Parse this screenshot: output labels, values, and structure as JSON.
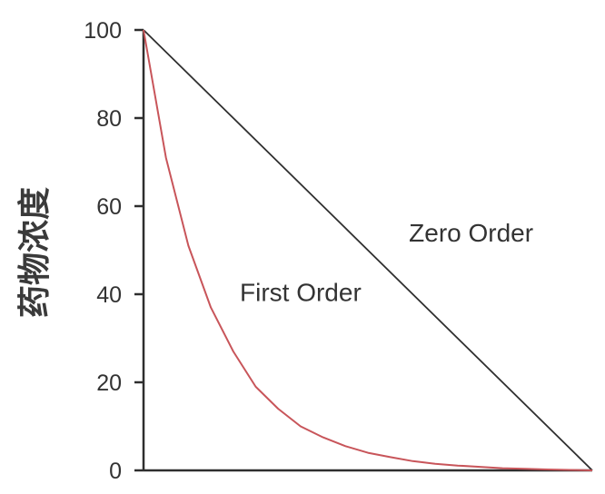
{
  "chart_data": {
    "type": "line",
    "title": "",
    "xlabel": "",
    "ylabel": "药物浓度",
    "ylim": [
      0,
      100
    ],
    "xlim": [
      0,
      10
    ],
    "y_ticks": [
      "0",
      "20",
      "40",
      "60",
      "80",
      "100"
    ],
    "x_ticks": [],
    "grid": false,
    "legend": "none",
    "series": [
      {
        "color": "#2f2f2f",
        "x": [
          0,
          10
        ],
        "y": [
          100,
          0
        ]
      },
      {
        "color": "#c8555a",
        "x": [
          0,
          0.5,
          1,
          1.5,
          2,
          2.5,
          3,
          3.5,
          4,
          4.5,
          5,
          5.5,
          6,
          6.5,
          7,
          7.5,
          8,
          8.5,
          9,
          9.5,
          10
        ],
        "y": [
          100,
          71,
          51,
          37,
          27,
          19,
          14,
          10,
          7.5,
          5.5,
          4,
          3,
          2.1,
          1.5,
          1.1,
          0.8,
          0.5,
          0.35,
          0.2,
          0.1,
          0
        ]
      }
    ],
    "annotations": [
      {
        "text": "Zero Order",
        "x": 7.3,
        "y": 52
      },
      {
        "text": "First Order",
        "x": 3.5,
        "y": 38.5
      }
    ]
  }
}
